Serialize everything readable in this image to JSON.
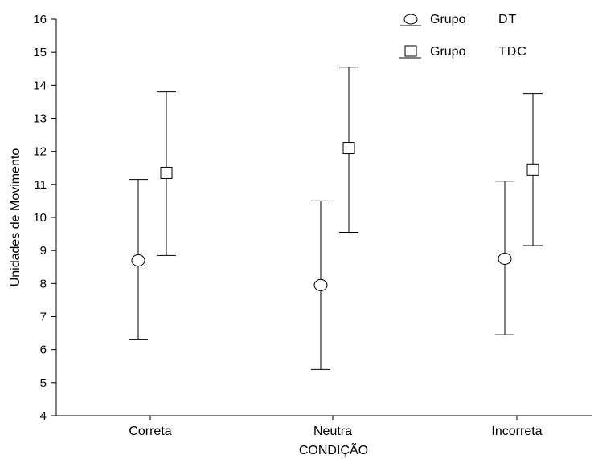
{
  "chart_data": {
    "type": "scatter",
    "title": "",
    "xlabel": "CONDIÇÃO",
    "ylabel": "Unidades de Movimento",
    "categories": [
      "Correta",
      "Neutra",
      "Incorreta"
    ],
    "ylim": [
      4,
      16
    ],
    "yticks": [
      4,
      5,
      6,
      7,
      8,
      9,
      10,
      11,
      12,
      13,
      14,
      15,
      16
    ],
    "grid": false,
    "legend_position": "top-right",
    "series": [
      {
        "name_parts": [
          "Grupo",
          "DT"
        ],
        "marker": "circle",
        "means": [
          8.7,
          7.95,
          8.75
        ],
        "lower": [
          6.3,
          5.4,
          6.45
        ],
        "upper": [
          11.15,
          10.5,
          11.1
        ]
      },
      {
        "name_parts": [
          "Grupo",
          "TDC"
        ],
        "marker": "square",
        "means": [
          11.35,
          12.1,
          11.45
        ],
        "lower": [
          8.85,
          9.55,
          9.15
        ],
        "upper": [
          13.8,
          14.55,
          13.75
        ]
      }
    ]
  }
}
